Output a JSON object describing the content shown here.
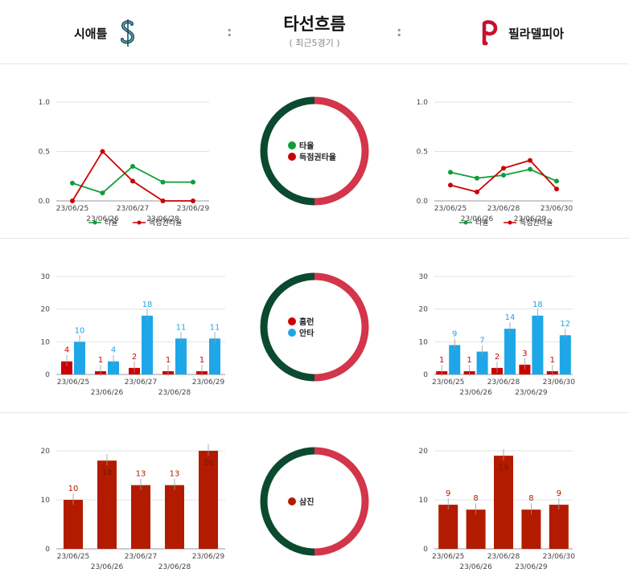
{
  "header": {
    "title": "타선흐름",
    "subtitle": "( 최근5경기 )",
    "colon": ":",
    "team_left": "시애틀",
    "team_right": "필라델피아"
  },
  "colors": {
    "green": "#0f9d3a",
    "red": "#cc0000",
    "blue": "#1ea7e8",
    "bar_red_dark": "#b31b00",
    "ring_dark": "#0b4a2e",
    "ring_red": "#d3354b"
  },
  "chart_data": [
    {
      "type": "line",
      "team": "시애틀",
      "categories": [
        "23/06/25",
        "23/06/26",
        "23/06/27",
        "23/06/28",
        "23/06/29"
      ],
      "series": [
        {
          "name": "타율",
          "values": [
            0.18,
            0.08,
            0.35,
            0.19,
            0.19
          ]
        },
        {
          "name": "득점권타율",
          "values": [
            0,
            0.5,
            0.2,
            0,
            0
          ]
        }
      ],
      "ylim": [
        0,
        1
      ],
      "yticks": [
        "0.0",
        "0.5",
        "1.0"
      ]
    },
    {
      "type": "line",
      "team": "필라델피아",
      "categories": [
        "23/06/25",
        "23/06/26",
        "23/06/28",
        "23/06/29",
        "23/06/30"
      ],
      "series": [
        {
          "name": "타율",
          "values": [
            0.29,
            0.23,
            0.26,
            0.32,
            0.2
          ]
        },
        {
          "name": "득점권타율",
          "values": [
            0.16,
            0.09,
            0.33,
            0.41,
            0.12
          ]
        }
      ],
      "ylim": [
        0,
        1
      ],
      "yticks": [
        "0.0",
        "0.5",
        "1.0"
      ]
    },
    {
      "type": "bar",
      "team": "시애틀",
      "categories": [
        "23/06/25",
        "23/06/26",
        "23/06/27",
        "23/06/28",
        "23/06/29"
      ],
      "series": [
        {
          "name": "홈런",
          "values": [
            4,
            1,
            2,
            1,
            1
          ]
        },
        {
          "name": "안타",
          "values": [
            10,
            4,
            18,
            11,
            11
          ]
        }
      ],
      "ylim": [
        0,
        30
      ],
      "yticks": [
        "0",
        "10",
        "20",
        "30"
      ]
    },
    {
      "type": "bar",
      "team": "필라델피아",
      "categories": [
        "23/06/25",
        "23/06/26",
        "23/06/28",
        "23/06/29",
        "23/06/30"
      ],
      "series": [
        {
          "name": "홈런",
          "values": [
            1,
            1,
            2,
            3,
            1
          ]
        },
        {
          "name": "안타",
          "values": [
            9,
            7,
            14,
            18,
            12
          ]
        }
      ],
      "ylim": [
        0,
        30
      ],
      "yticks": [
        "0",
        "10",
        "20",
        "30"
      ]
    },
    {
      "type": "bar",
      "team": "시애틀",
      "categories": [
        "23/06/25",
        "23/06/26",
        "23/06/27",
        "23/06/28",
        "23/06/29"
      ],
      "series": [
        {
          "name": "삼진",
          "values": [
            10,
            18,
            13,
            13,
            20
          ]
        }
      ],
      "ylim": [
        0,
        20
      ],
      "yticks": [
        "0",
        "10",
        "20"
      ]
    },
    {
      "type": "bar",
      "team": "필라델피아",
      "categories": [
        "23/06/25",
        "23/06/26",
        "23/06/28",
        "23/06/29",
        "23/06/30"
      ],
      "series": [
        {
          "name": "삼진",
          "values": [
            9,
            8,
            19,
            8,
            9
          ]
        }
      ],
      "ylim": [
        0,
        20
      ],
      "yticks": [
        "0",
        "10",
        "20"
      ]
    }
  ],
  "center_legends": [
    [
      "타율",
      "득점권타율"
    ],
    [
      "홈런",
      "안타"
    ],
    [
      "삼진"
    ]
  ]
}
